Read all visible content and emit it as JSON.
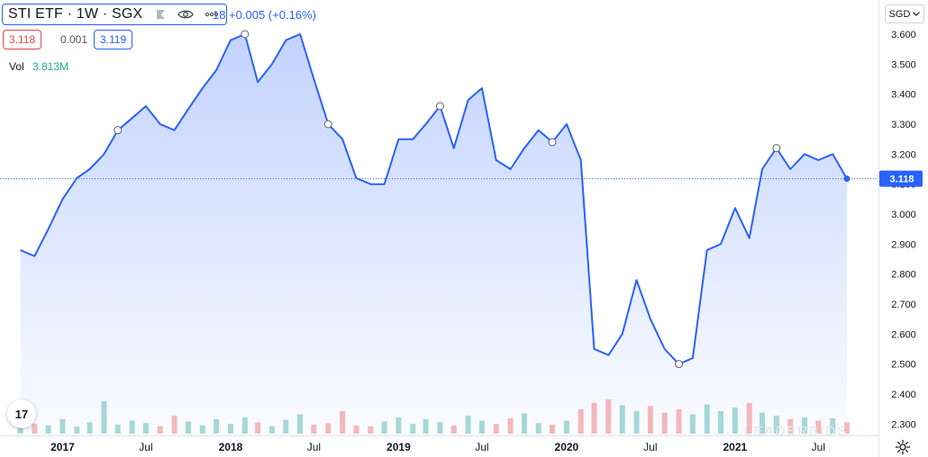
{
  "header": {
    "title": "STI ETF · 1W · SGX",
    "change_text": "18  +0.005 (+0.16%)",
    "sell_price": "3.118",
    "spread": "0.001",
    "buy_price": "3.119",
    "vol_label": "Vol",
    "vol_value": "3.813M",
    "currency": "SGD"
  },
  "logo_text": "17",
  "watermark": "LEADERBIDS",
  "colors": {
    "line": "#2962ff",
    "fill": "#2962ff",
    "vol_up": "#26a69a",
    "vol_down": "#ef5350",
    "price_tag": "#2962ff"
  },
  "icons": [
    "eye-icon",
    "flag-icon",
    "more-icon",
    "chevron-down-icon",
    "gear-icon"
  ],
  "chart_data": {
    "type": "area",
    "title": "",
    "xlabel": "",
    "ylabel": "",
    "x_tick_labels": [
      "2017",
      "Jul",
      "2018",
      "Jul",
      "2019",
      "Jul",
      "2020",
      "Jul",
      "2021",
      "Jul"
    ],
    "y_tick_labels": [
      "3.600",
      "3.500",
      "3.400",
      "3.300",
      "3.200",
      "3.100",
      "3.000",
      "2.900",
      "2.800",
      "2.700",
      "2.600",
      "2.500",
      "2.400",
      "2.300"
    ],
    "ylim": [
      2.28,
      3.66
    ],
    "last_price_label": "3.118",
    "last_price": 3.118,
    "grid": false,
    "series": [
      {
        "name": "STI ETF",
        "x": [
          "2016-10",
          "2016-11",
          "2016-12",
          "2017-01",
          "2017-02",
          "2017-03",
          "2017-04",
          "2017-05",
          "2017-06",
          "2017-07",
          "2017-08",
          "2017-09",
          "2017-10",
          "2017-11",
          "2017-12",
          "2018-01",
          "2018-02",
          "2018-03",
          "2018-04",
          "2018-05",
          "2018-06",
          "2018-07",
          "2018-08",
          "2018-09",
          "2018-10",
          "2018-11",
          "2018-12",
          "2019-01",
          "2019-02",
          "2019-03",
          "2019-04",
          "2019-05",
          "2019-06",
          "2019-07",
          "2019-08",
          "2019-09",
          "2019-10",
          "2019-11",
          "2019-12",
          "2020-01",
          "2020-02",
          "2020-03",
          "2020-04",
          "2020-05",
          "2020-06",
          "2020-07",
          "2020-08",
          "2020-09",
          "2020-10",
          "2020-11",
          "2020-12",
          "2021-01",
          "2021-02",
          "2021-03",
          "2021-04",
          "2021-05",
          "2021-06",
          "2021-07",
          "2021-08",
          "2021-09"
        ],
        "values": [
          2.88,
          2.86,
          2.95,
          3.05,
          3.12,
          3.15,
          3.2,
          3.28,
          3.32,
          3.36,
          3.3,
          3.28,
          3.35,
          3.42,
          3.48,
          3.58,
          3.6,
          3.44,
          3.5,
          3.58,
          3.6,
          3.45,
          3.3,
          3.25,
          3.12,
          3.1,
          3.1,
          3.25,
          3.25,
          3.3,
          3.36,
          3.22,
          3.38,
          3.42,
          3.18,
          3.15,
          3.22,
          3.28,
          3.24,
          3.3,
          3.18,
          2.55,
          2.53,
          2.6,
          2.78,
          2.65,
          2.55,
          2.5,
          2.52,
          2.88,
          2.9,
          3.02,
          2.92,
          3.15,
          3.22,
          3.15,
          3.2,
          3.18,
          3.2,
          3.118
        ]
      }
    ]
  }
}
